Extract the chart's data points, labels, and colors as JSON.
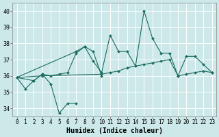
{
  "xlabel": "Humidex (Indice chaleur)",
  "bg_color": "#cce8e8",
  "grid_color": "#ffffff",
  "line_color": "#1a6b5e",
  "xlim": [
    -0.5,
    23.5
  ],
  "ylim": [
    33.5,
    40.5
  ],
  "yticks": [
    34,
    35,
    36,
    37,
    38,
    39,
    40
  ],
  "xticks": [
    0,
    1,
    2,
    3,
    4,
    5,
    6,
    7,
    8,
    9,
    10,
    11,
    12,
    13,
    14,
    15,
    16,
    17,
    18,
    19,
    20,
    21,
    22,
    23
  ],
  "series": [
    {
      "x": [
        0,
        1,
        2,
        3,
        4,
        5,
        6,
        7
      ],
      "y": [
        35.9,
        35.2,
        35.7,
        36.1,
        35.5,
        33.7,
        34.3,
        34.3
      ]
    },
    {
      "x": [
        0,
        2,
        3,
        4,
        5,
        6,
        7,
        8,
        9,
        10
      ],
      "y": [
        35.9,
        35.7,
        36.1,
        36.0,
        36.1,
        36.2,
        37.4,
        37.8,
        37.5,
        36.0
      ]
    },
    {
      "x": [
        0,
        3,
        10,
        11,
        12,
        13,
        14,
        15,
        16,
        17,
        18,
        19,
        20,
        21,
        22,
        23
      ],
      "y": [
        35.9,
        36.0,
        36.1,
        36.2,
        36.3,
        36.5,
        36.6,
        36.7,
        36.8,
        36.9,
        37.0,
        36.0,
        36.1,
        36.2,
        36.3,
        36.2
      ]
    },
    {
      "x": [
        0,
        7,
        8,
        9,
        10,
        11,
        12,
        13,
        14,
        15,
        16,
        17,
        18,
        19,
        20,
        21,
        22,
        23
      ],
      "y": [
        35.9,
        37.5,
        37.8,
        36.9,
        36.2,
        38.5,
        37.5,
        37.5,
        36.6,
        40.0,
        38.3,
        37.4,
        37.4,
        36.0,
        37.2,
        37.2,
        36.7,
        36.2
      ]
    }
  ]
}
